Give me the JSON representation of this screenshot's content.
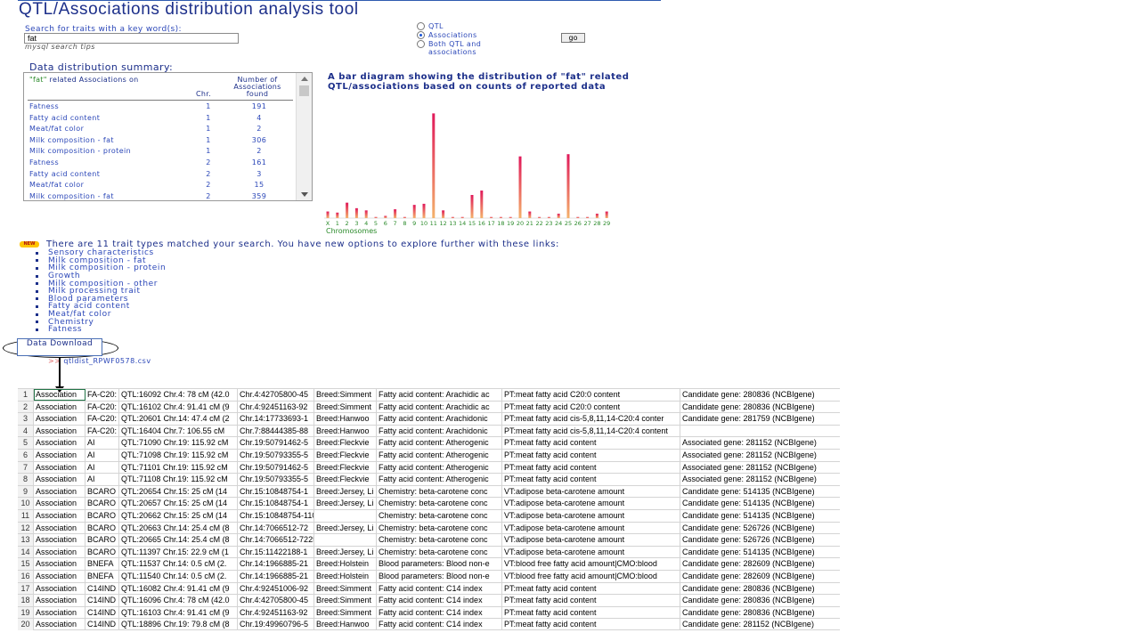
{
  "title": "QTL/Associations distribution analysis tool",
  "search": {
    "label": "Search for traits with a key word(s):",
    "value": "fat",
    "tips": "mysql search tips"
  },
  "radio_options": [
    {
      "label": "QTL",
      "checked": false
    },
    {
      "label": "Associations",
      "checked": true
    },
    {
      "label": "Both QTL and associations",
      "checked": false
    }
  ],
  "go_label": "go",
  "summary": {
    "title": "Data distribution summary:",
    "header_quoted": "\"fat\"",
    "header_rest": " related Associations on",
    "col_chr": "Chr.",
    "col_count": "Number of Associations found",
    "rows": [
      {
        "trait": "Fatness",
        "chr": "1",
        "count": "191"
      },
      {
        "trait": "Fatty acid content",
        "chr": "1",
        "count": "4"
      },
      {
        "trait": "Meat/fat color",
        "chr": "1",
        "count": "2"
      },
      {
        "trait": "Milk composition - fat",
        "chr": "1",
        "count": "306"
      },
      {
        "trait": "Milk composition - protein",
        "chr": "1",
        "count": "2"
      },
      {
        "trait": "Fatness",
        "chr": "2",
        "count": "161"
      },
      {
        "trait": "Fatty acid content",
        "chr": "2",
        "count": "3"
      },
      {
        "trait": "Meat/fat color",
        "chr": "2",
        "count": "15"
      },
      {
        "trait": "Milk composition - fat",
        "chr": "2",
        "count": "359"
      }
    ]
  },
  "chart_title": "A bar diagram showing the distribution of \"fat\" related QTL/associations based on counts of reported data",
  "chart_data": {
    "type": "bar",
    "categories": [
      "X",
      "1",
      "2",
      "3",
      "4",
      "5",
      "6",
      "7",
      "8",
      "9",
      "10",
      "11",
      "12",
      "13",
      "14",
      "15",
      "16",
      "17",
      "18",
      "19",
      "20",
      "21",
      "22",
      "23",
      "24",
      "25",
      "26",
      "27",
      "28",
      "29"
    ],
    "values": [
      6,
      5,
      14,
      9,
      7,
      1,
      2,
      8,
      1,
      12,
      13,
      95,
      7,
      1,
      1,
      21,
      25,
      1,
      1,
      1,
      56,
      6,
      1,
      1,
      4,
      58,
      1,
      1,
      4,
      6
    ],
    "xlabel": "Chromosomes",
    "ylim": [
      0,
      105
    ],
    "bar_colors": {
      "top": "#e0185a",
      "bottom": "#f4b26b"
    }
  },
  "match_text": "There are 11 trait types matched your search. You have new options to explore further with these links:",
  "new_badge": "NEW",
  "trait_links": [
    "Sensory characteristics",
    "Milk composition - fat",
    "Milk composition - protein",
    "Growth",
    "Milk composition - other",
    "Milk processing trait",
    "Blood parameters",
    "Fatty acid content",
    "Meat/fat color",
    "Chemistry",
    "Fatness"
  ],
  "download_label": "Data Download",
  "file_link": "qtldist_RPWF0578.csv",
  "sheet_rows": [
    [
      "1",
      "Association",
      "FA-C20:",
      "QTL:16092 Chr.4: 78 cM (42.0",
      "Chr.4:42705800-45",
      "Breed:Simment",
      "Fatty acid content: Arachidic ac",
      "PT:meat fatty acid C20:0 content",
      "Candidate gene: 280836 (NCBIgene)"
    ],
    [
      "2",
      "Association",
      "FA-C20:",
      "QTL:16102 Chr.4: 91.41 cM (9",
      "Chr.4:92451163-92",
      "Breed:Simment",
      "Fatty acid content: Arachidic ac",
      "PT:meat fatty acid C20:0 content",
      "Candidate gene: 280836 (NCBIgene)"
    ],
    [
      "3",
      "Association",
      "FA-C20:",
      "QTL:20601 Chr.14: 47.4 cM (2",
      "Chr.14:17733693-1",
      "Breed:Hanwoo",
      "Fatty acid content: Arachidonic",
      "PT:meat fatty acid cis-5,8,11,14-C20:4 conter",
      "Candidate gene: 281759 (NCBIgene)"
    ],
    [
      "4",
      "Association",
      "FA-C20:",
      "QTL:16404 Chr.7: 106.55 cM",
      "Chr.7:88444385-88",
      "Breed:Hanwoo",
      "Fatty acid content: Arachidonic",
      "PT:meat fatty acid cis-5,8,11,14-C20:4 content",
      ""
    ],
    [
      "5",
      "Association",
      "AI",
      "QTL:71090 Chr.19: 115.92 cM",
      "Chr.19:50791462-5",
      "Breed:Fleckvie",
      "Fatty acid content: Atherogenic",
      "PT:meat fatty acid content",
      "Associated gene: 281152 (NCBIgene)"
    ],
    [
      "6",
      "Association",
      "AI",
      "QTL:71098 Chr.19: 115.92 cM",
      "Chr.19:50793355-5",
      "Breed:Fleckvie",
      "Fatty acid content: Atherogenic",
      "PT:meat fatty acid content",
      "Associated gene: 281152 (NCBIgene)"
    ],
    [
      "7",
      "Association",
      "AI",
      "QTL:71101 Chr.19: 115.92 cM",
      "Chr.19:50791462-5",
      "Breed:Fleckvie",
      "Fatty acid content: Atherogenic",
      "PT:meat fatty acid content",
      "Associated gene: 281152 (NCBIgene)"
    ],
    [
      "8",
      "Association",
      "AI",
      "QTL:71108 Chr.19: 115.92 cM",
      "Chr.19:50793355-5",
      "Breed:Fleckvie",
      "Fatty acid content: Atherogenic",
      "PT:meat fatty acid content",
      "Associated gene: 281152 (NCBIgene)"
    ],
    [
      "9",
      "Association",
      "BCARO",
      "QTL:20654 Chr.15: 25 cM (14",
      "Chr.15:10848754-1",
      "Breed:Jersey, Li",
      "Chemistry: beta-carotene conc",
      "VT:adipose beta-carotene amount",
      "Candidate gene: 514135 (NCBIgene)"
    ],
    [
      "10",
      "Association",
      "BCARO",
      "QTL:20657 Chr.15: 25 cM (14",
      "Chr.15:10848754-1",
      "Breed:Jersey, Li",
      "Chemistry: beta-carotene conc",
      "VT:adipose beta-carotene amount",
      "Candidate gene: 514135 (NCBIgene)"
    ],
    [
      "11",
      "Association",
      "BCARO",
      "QTL:20662 Chr.15: 25 cM (14",
      "Chr.15:10848754-11003736 bp",
      "",
      "Chemistry: beta-carotene conc",
      "VT:adipose beta-carotene amount",
      "Candidate gene: 514135 (NCBIgene)"
    ],
    [
      "12",
      "Association",
      "BCARO",
      "QTL:20663 Chr.14: 25.4 cM (8",
      "Chr.14:7066512-72",
      "Breed:Jersey, Li",
      "Chemistry: beta-carotene conc",
      "VT:adipose beta-carotene amount",
      "Candidate gene: 526726 (NCBIgene)"
    ],
    [
      "13",
      "Association",
      "BCARO",
      "QTL:20665 Chr.14: 25.4 cM (8",
      "Chr.14:7066512-7225131 bp",
      "",
      "Chemistry: beta-carotene conc",
      "VT:adipose beta-carotene amount",
      "Candidate gene: 526726 (NCBIgene)"
    ],
    [
      "14",
      "Association",
      "BCARO",
      "QTL:11397 Chr.15: 22.9 cM (1",
      "Chr.15:11422188-1",
      "Breed:Jersey, Li",
      "Chemistry: beta-carotene conc",
      "VT:adipose beta-carotene amount",
      "Candidate gene: 514135 (NCBIgene)"
    ],
    [
      "15",
      "Association",
      "BNEFA",
      "QTL:11537 Chr.14: 0.5 cM (2.",
      "Chr.14:1966885-21",
      "Breed:Holstein",
      "Blood parameters: Blood non-e",
      "VT:blood free fatty acid amount|CMO:blood",
      "Candidate gene: 282609 (NCBIgene)"
    ],
    [
      "16",
      "Association",
      "BNEFA",
      "QTL:11540 Chr.14: 0.5 cM (2.",
      "Chr.14:1966885-21",
      "Breed:Holstein",
      "Blood parameters: Blood non-e",
      "VT:blood free fatty acid amount|CMO:blood",
      "Candidate gene: 282609 (NCBIgene)"
    ],
    [
      "17",
      "Association",
      "C14IND",
      "QTL:16082 Chr.4: 91.41 cM (9",
      "Chr.4:92451006-92",
      "Breed:Simment",
      "Fatty acid content: C14 index",
      "PT:meat fatty acid content",
      "Candidate gene: 280836 (NCBIgene)"
    ],
    [
      "18",
      "Association",
      "C14IND",
      "QTL:16096 Chr.4: 78 cM (42.0",
      "Chr.4:42705800-45",
      "Breed:Simment",
      "Fatty acid content: C14 index",
      "PT:meat fatty acid content",
      "Candidate gene: 280836 (NCBIgene)"
    ],
    [
      "19",
      "Association",
      "C14IND",
      "QTL:16103 Chr.4: 91.41 cM (9",
      "Chr.4:92451163-92",
      "Breed:Simment",
      "Fatty acid content: C14 index",
      "PT:meat fatty acid content",
      "Candidate gene: 280836 (NCBIgene)"
    ],
    [
      "20",
      "Association",
      "C14IND",
      "QTL:18896 Chr.19: 79.8 cM (8",
      "Chr.19:49960796-5",
      "Breed:Hanwoo",
      "Fatty acid content: C14 index",
      "PT:meat fatty acid content",
      "Candidate gene: 281152 (NCBIgene)"
    ]
  ]
}
